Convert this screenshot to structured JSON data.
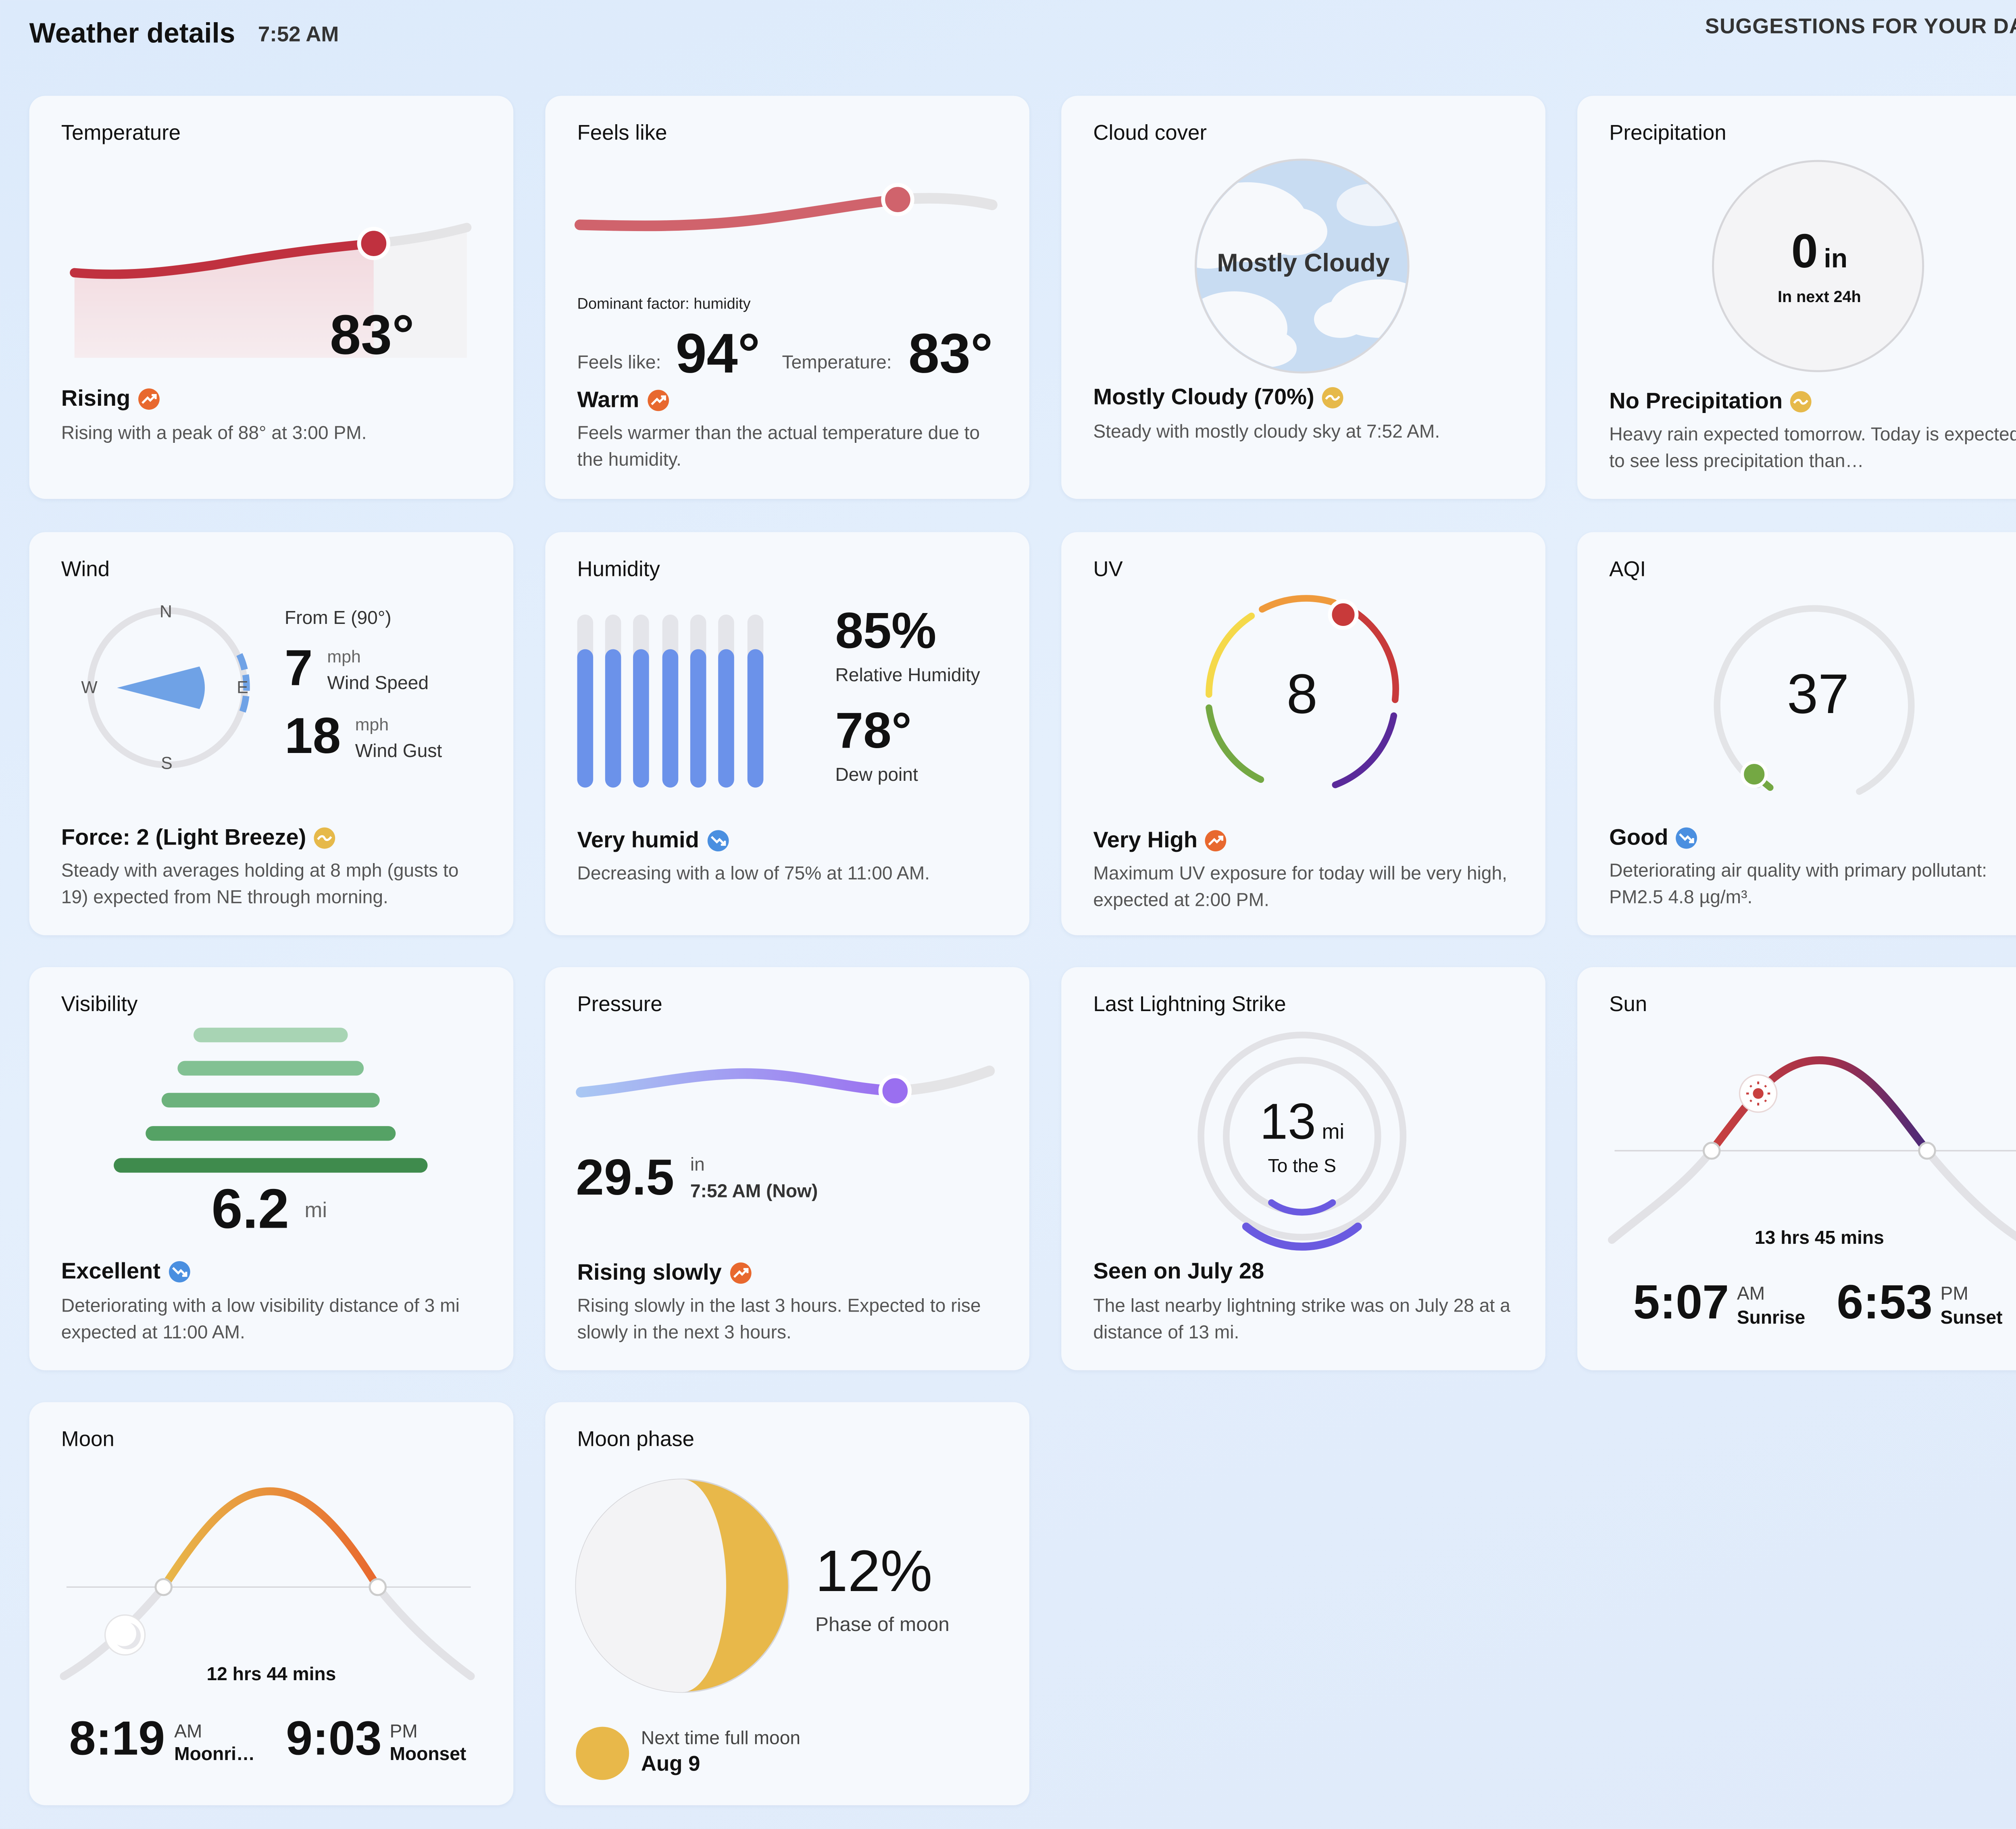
{
  "header": {
    "title": "Weather details",
    "time": "7:52 AM",
    "suggestions": "SUGGESTIONS FOR YOUR DAY"
  },
  "colors": {
    "up": "#e8682e",
    "steady": "#e6b94a",
    "down": "#4a8fe0"
  },
  "temperature": {
    "title": "Temperature",
    "value": "83°",
    "status": "Rising",
    "trend": "up",
    "desc": "Rising with a peak of 88° at 3:00 PM."
  },
  "feels_like": {
    "title": "Feels like",
    "dominant": "Dominant factor: humidity",
    "feels_label": "Feels like:",
    "feels_value": "94°",
    "temp_label": "Temperature:",
    "temp_value": "83°",
    "status": "Warm",
    "trend": "up",
    "desc": "Feels warmer than the actual temperature due to the humidity."
  },
  "cloud_cover": {
    "title": "Cloud cover",
    "label": "Mostly Cloudy",
    "status": "Mostly Cloudy (70%)",
    "trend": "steady",
    "desc": "Steady with mostly cloudy sky at 7:52 AM."
  },
  "precipitation": {
    "title": "Precipitation",
    "amount": "0",
    "unit": "in",
    "period": "In next 24h",
    "status": "No Precipitation",
    "trend": "steady",
    "desc": "Heavy rain expected tomorrow. Today is expected to see less precipitation than…"
  },
  "wind": {
    "title": "Wind",
    "compass": {
      "n": "N",
      "e": "E",
      "s": "S",
      "w": "W"
    },
    "direction": "From E (90°)",
    "speed": "7",
    "speed_unit": "mph",
    "speed_label": "Wind Speed",
    "gust": "18",
    "gust_unit": "mph",
    "gust_label": "Wind Gust",
    "status": "Force: 2 (Light Breeze)",
    "trend": "steady",
    "desc": "Steady with averages holding at 8 mph (gusts to 19) expected from NE through morning."
  },
  "humidity": {
    "title": "Humidity",
    "value": "85%",
    "value_label": "Relative Humidity",
    "dew": "78°",
    "dew_label": "Dew point",
    "status": "Very humid",
    "trend": "down",
    "desc": "Decreasing with a low of 75% at 11:00 AM."
  },
  "uv": {
    "title": "UV",
    "value": "8",
    "status": "Very High",
    "trend": "up",
    "desc": "Maximum UV exposure for today will be very high, expected at 2:00 PM."
  },
  "aqi": {
    "title": "AQI",
    "value": "37",
    "status": "Good",
    "trend": "down",
    "desc": "Deteriorating air quality with primary pollutant: PM2.5 4.8 µg/m³."
  },
  "visibility": {
    "title": "Visibility",
    "value": "6.2",
    "unit": "mi",
    "status": "Excellent",
    "trend": "down",
    "desc": "Deteriorating with a low visibility distance of 3 mi expected at 11:00 AM."
  },
  "pressure": {
    "title": "Pressure",
    "value": "29.5",
    "unit": "in",
    "when": "7:52 AM (Now)",
    "status": "Rising slowly",
    "trend": "up",
    "desc": "Rising slowly in the last 3 hours. Expected to rise slowly in the next 3 hours."
  },
  "lightning": {
    "title": "Last Lightning Strike",
    "distance": "13",
    "unit": "mi",
    "direction": "To the S",
    "status": "Seen on July 28",
    "desc": "The last nearby lightning strike was on July 28 at a distance of 13 mi."
  },
  "sun": {
    "title": "Sun",
    "duration": "13 hrs 45 mins",
    "rise": "5:07",
    "rise_ampm": "AM",
    "rise_label": "Sunrise",
    "set": "6:53",
    "set_ampm": "PM",
    "set_label": "Sunset"
  },
  "moon": {
    "title": "Moon",
    "duration": "12 hrs 44 mins",
    "rise": "8:19",
    "rise_ampm": "AM",
    "rise_label": "Moonri…",
    "set": "9:03",
    "set_ampm": "PM",
    "set_label": "Moonset"
  },
  "moon_phase": {
    "title": "Moon phase",
    "value": "12%",
    "label": "Phase of moon",
    "next_label": "Next time full moon",
    "next_date": "Aug 9"
  }
}
